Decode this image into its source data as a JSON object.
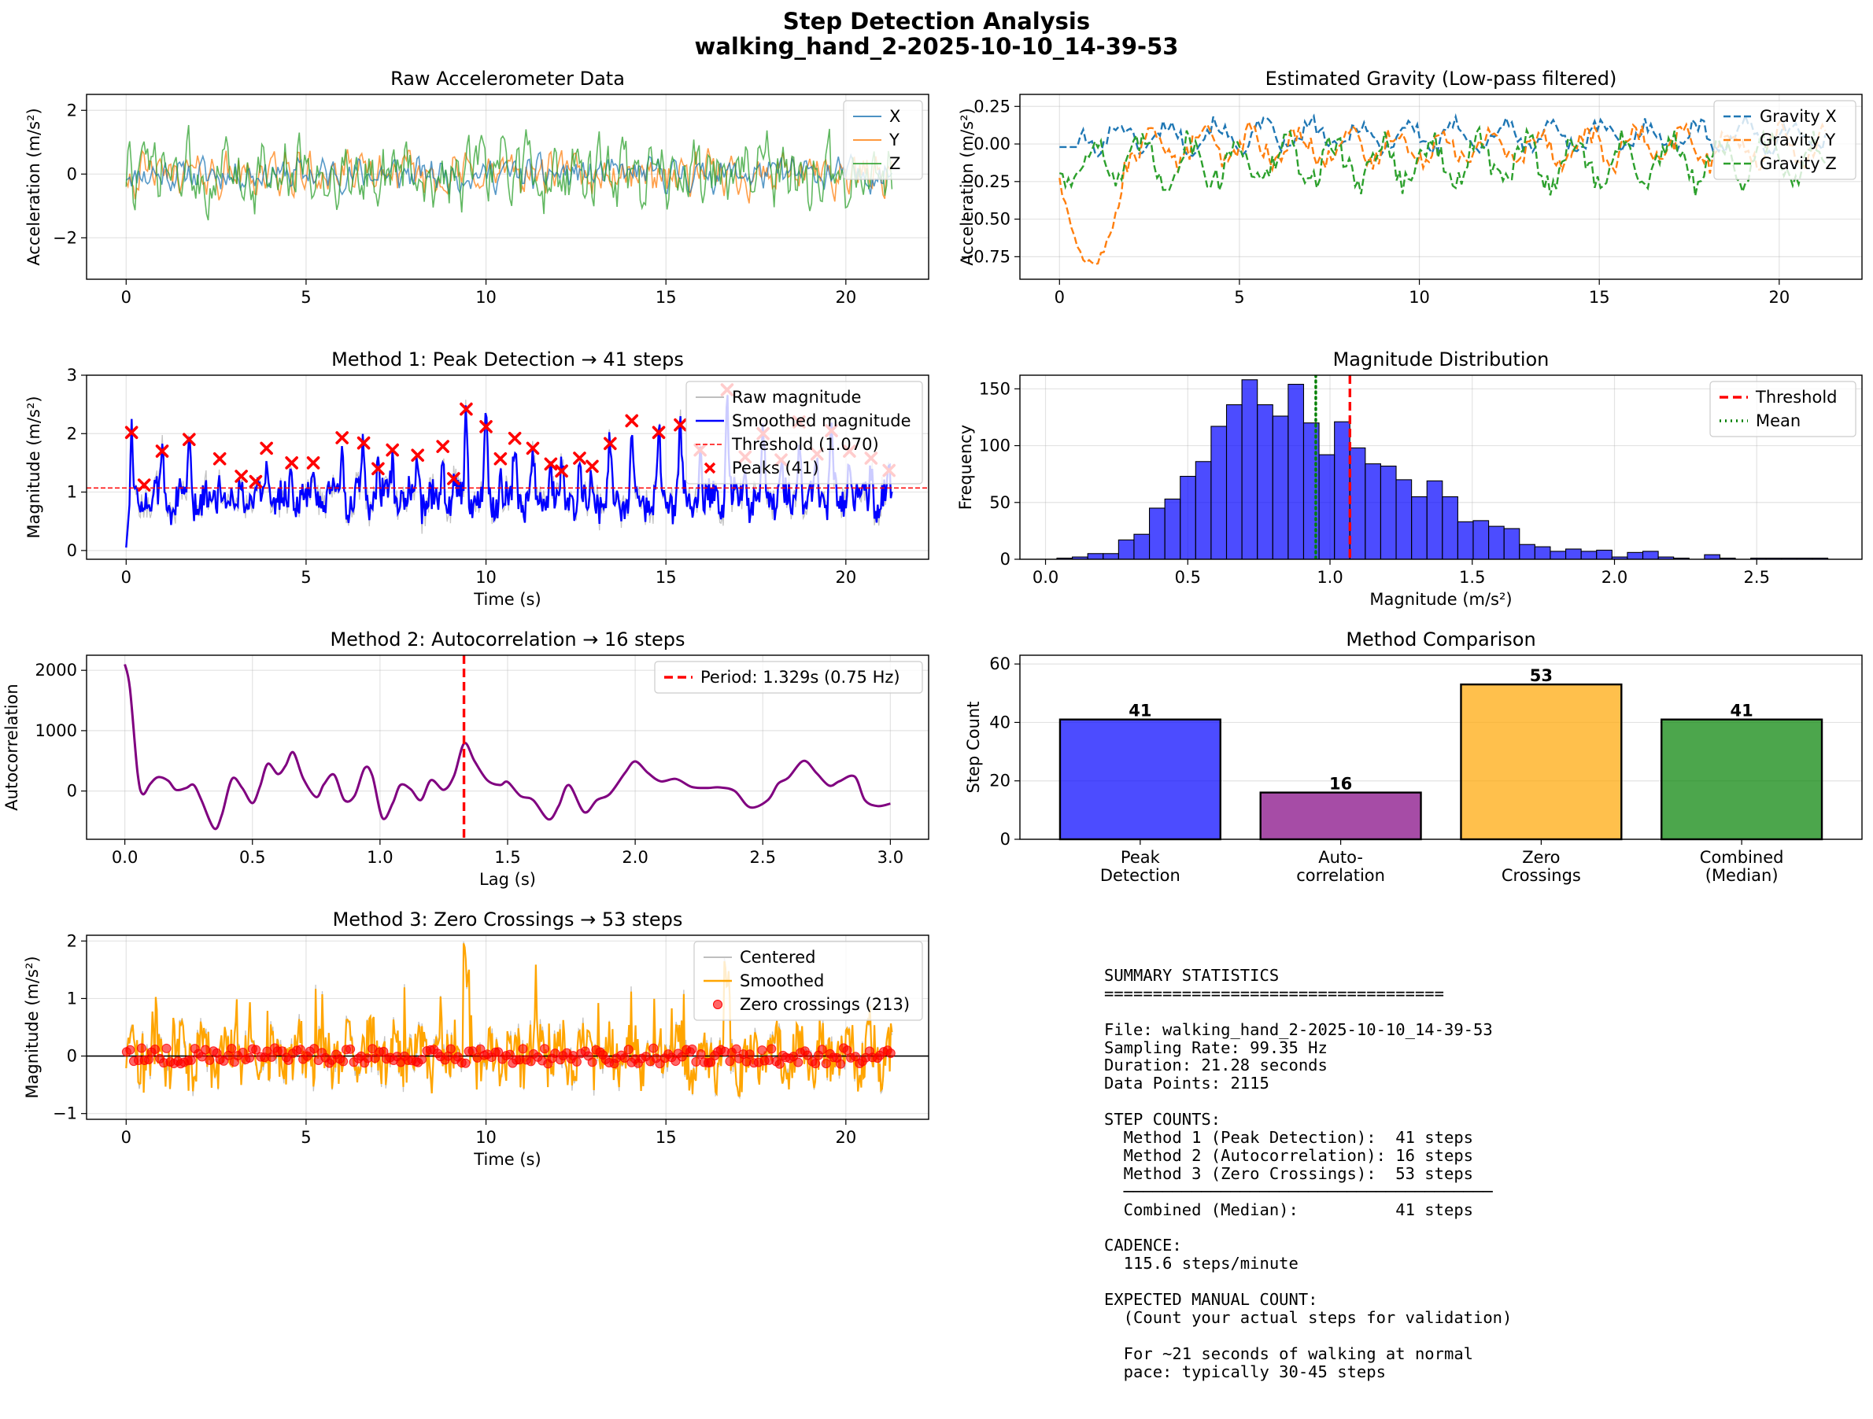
{
  "figure": {
    "title_line1": "Step Detection Analysis",
    "title_line2": "walking_hand_2-2025-10-10_14-39-53"
  },
  "colors": {
    "x": "#1f77b4",
    "y": "#ff7f0e",
    "z": "#2ca02c",
    "smoothed": "#0000ff",
    "threshold": "#ff0000",
    "peaks": "#ff0000",
    "autocorr": "#800080",
    "period": "#ff0000",
    "zero_smoothed": "#ffa500",
    "zero_points": "#ff0000",
    "hist": "#0000ff",
    "mean": "#008000",
    "raw": "#aaaaaa"
  },
  "chart_data": [
    {
      "id": "raw_accel",
      "type": "line",
      "title": "Raw Accelerometer Data",
      "xlabel": "",
      "ylabel": "Acceleration (m/s²)",
      "xlim": [
        -1.1,
        22.3
      ],
      "ylim": [
        -3.3,
        2.5
      ],
      "xticks": [
        0,
        5,
        10,
        15,
        20
      ],
      "yticks": [
        -2,
        0,
        2
      ],
      "grid": true,
      "legend": "top-right",
      "duration": 21.28,
      "series": [
        {
          "name": "X",
          "amplitude": 0.45
        },
        {
          "name": "Y",
          "amplitude": 0.6
        },
        {
          "name": "Z",
          "amplitude": 1.0
        }
      ]
    },
    {
      "id": "gravity",
      "type": "line",
      "title": "Estimated Gravity (Low-pass filtered)",
      "xlabel": "",
      "ylabel": "Acceleration (m/s²)",
      "xlim": [
        -1.1,
        22.3
      ],
      "ylim": [
        -0.9,
        0.33
      ],
      "xticks": [
        0,
        5,
        10,
        15,
        20
      ],
      "yticks": [
        0.25,
        0.0,
        -0.25,
        -0.5,
        -0.75
      ],
      "ytick_labels": [
        "0.25",
        "0.00",
        "−0.25",
        "−0.50",
        "−0.75"
      ],
      "grid": true,
      "legend": "top-right",
      "series": [
        {
          "name": "Gravity X",
          "mean": 0.05,
          "amplitude": 0.12
        },
        {
          "name": "Gravity Y",
          "mean": -0.02,
          "amplitude": 0.16
        },
        {
          "name": "Gravity Z",
          "mean": -0.12,
          "amplitude": 0.2
        }
      ]
    },
    {
      "id": "peak_detection",
      "type": "line",
      "title": "Method 1: Peak Detection → 41 steps",
      "xlabel": "Time (s)",
      "ylabel": "Magnitude (m/s²)",
      "xlim": [
        -1.1,
        22.3
      ],
      "ylim": [
        -0.15,
        3.0
      ],
      "xticks": [
        0,
        5,
        10,
        15,
        20
      ],
      "yticks": [
        0,
        1,
        2,
        3
      ],
      "grid": true,
      "legend": "top-right",
      "threshold": 1.07,
      "series": [
        {
          "name": "Raw magnitude"
        },
        {
          "name": "Smoothed magnitude"
        },
        {
          "name": "Threshold (1.070)"
        },
        {
          "name": "Peaks (41)"
        }
      ],
      "peaks": [
        {
          "x": 0.15,
          "y": 2.02
        },
        {
          "x": 0.5,
          "y": 1.12
        },
        {
          "x": 1.0,
          "y": 1.7
        },
        {
          "x": 1.75,
          "y": 1.9
        },
        {
          "x": 2.6,
          "y": 1.57
        },
        {
          "x": 3.2,
          "y": 1.27
        },
        {
          "x": 3.6,
          "y": 1.18
        },
        {
          "x": 3.9,
          "y": 1.75
        },
        {
          "x": 4.6,
          "y": 1.5
        },
        {
          "x": 5.2,
          "y": 1.5
        },
        {
          "x": 6.0,
          "y": 1.93
        },
        {
          "x": 6.6,
          "y": 1.84
        },
        {
          "x": 7.0,
          "y": 1.4
        },
        {
          "x": 7.4,
          "y": 1.72
        },
        {
          "x": 8.1,
          "y": 1.63
        },
        {
          "x": 8.8,
          "y": 1.78
        },
        {
          "x": 9.1,
          "y": 1.23
        },
        {
          "x": 9.45,
          "y": 2.42
        },
        {
          "x": 10.0,
          "y": 2.12
        },
        {
          "x": 10.4,
          "y": 1.57
        },
        {
          "x": 10.8,
          "y": 1.92
        },
        {
          "x": 11.3,
          "y": 1.75
        },
        {
          "x": 11.8,
          "y": 1.48
        },
        {
          "x": 12.1,
          "y": 1.36
        },
        {
          "x": 12.6,
          "y": 1.58
        },
        {
          "x": 12.95,
          "y": 1.44
        },
        {
          "x": 13.45,
          "y": 1.83
        },
        {
          "x": 14.05,
          "y": 2.22
        },
        {
          "x": 14.8,
          "y": 2.02
        },
        {
          "x": 15.4,
          "y": 2.15
        },
        {
          "x": 15.95,
          "y": 1.72
        },
        {
          "x": 16.7,
          "y": 2.75
        },
        {
          "x": 17.2,
          "y": 1.6
        },
        {
          "x": 17.7,
          "y": 2.0
        },
        {
          "x": 18.2,
          "y": 1.55
        },
        {
          "x": 18.7,
          "y": 2.2
        },
        {
          "x": 19.2,
          "y": 1.65
        },
        {
          "x": 19.6,
          "y": 2.05
        },
        {
          "x": 20.1,
          "y": 1.7
        },
        {
          "x": 20.7,
          "y": 1.58
        },
        {
          "x": 21.2,
          "y": 1.37
        }
      ]
    },
    {
      "id": "magnitude_distribution",
      "type": "bar",
      "title": "Magnitude Distribution",
      "xlabel": "Magnitude (m/s²)",
      "ylabel": "Frequency",
      "xlim": [
        -0.09,
        2.87
      ],
      "ylim": [
        0,
        162
      ],
      "xticks": [
        0.0,
        0.5,
        1.0,
        1.5,
        2.0,
        2.5
      ],
      "yticks": [
        0,
        50,
        100,
        150
      ],
      "grid": true,
      "legend": "top-right",
      "bin_start": 0.04,
      "bin_width": 0.0542,
      "values": [
        1,
        2,
        5,
        5,
        17,
        22,
        45,
        53,
        73,
        86,
        117,
        136,
        158,
        136,
        126,
        154,
        120,
        92,
        121,
        98,
        84,
        82,
        70,
        55,
        69,
        55,
        33,
        34,
        29,
        27,
        13,
        11,
        7,
        9,
        7,
        8,
        2,
        6,
        7,
        2,
        1,
        0,
        4,
        1,
        0,
        1,
        1,
        1,
        1,
        1
      ],
      "threshold": 1.07,
      "mean": 0.95,
      "series": [
        {
          "name": "Threshold"
        },
        {
          "name": "Mean"
        }
      ]
    },
    {
      "id": "autocorrelation",
      "type": "line",
      "title": "Method 2: Autocorrelation → 16 steps",
      "xlabel": "Lag (s)",
      "ylabel": "Autocorrelation",
      "xlim": [
        -0.15,
        3.15
      ],
      "ylim": [
        -800,
        2250
      ],
      "xticks": [
        0.0,
        0.5,
        1.0,
        1.5,
        2.0,
        2.5,
        3.0
      ],
      "yticks": [
        0,
        1000,
        2000
      ],
      "grid": true,
      "legend": "top-right",
      "period_lag": 1.329,
      "series": [
        {
          "name": "Period: 1.329s (0.75 Hz)"
        }
      ],
      "curve": [
        [
          0.0,
          2100
        ],
        [
          0.02,
          1700
        ],
        [
          0.05,
          300
        ],
        [
          0.07,
          -50
        ],
        [
          0.1,
          120
        ],
        [
          0.13,
          230
        ],
        [
          0.17,
          170
        ],
        [
          0.2,
          20
        ],
        [
          0.24,
          50
        ],
        [
          0.27,
          100
        ],
        [
          0.3,
          -150
        ],
        [
          0.35,
          -620
        ],
        [
          0.38,
          -400
        ],
        [
          0.42,
          200
        ],
        [
          0.46,
          50
        ],
        [
          0.5,
          -200
        ],
        [
          0.53,
          80
        ],
        [
          0.56,
          450
        ],
        [
          0.6,
          280
        ],
        [
          0.63,
          420
        ],
        [
          0.66,
          640
        ],
        [
          0.7,
          200
        ],
        [
          0.75,
          -100
        ],
        [
          0.78,
          110
        ],
        [
          0.82,
          270
        ],
        [
          0.86,
          -150
        ],
        [
          0.9,
          -80
        ],
        [
          0.94,
          380
        ],
        [
          0.97,
          250
        ],
        [
          1.01,
          -450
        ],
        [
          1.05,
          -200
        ],
        [
          1.08,
          100
        ],
        [
          1.12,
          30
        ],
        [
          1.16,
          -150
        ],
        [
          1.2,
          180
        ],
        [
          1.25,
          20
        ],
        [
          1.29,
          250
        ],
        [
          1.33,
          790
        ],
        [
          1.37,
          500
        ],
        [
          1.42,
          180
        ],
        [
          1.47,
          100
        ],
        [
          1.5,
          150
        ],
        [
          1.55,
          -80
        ],
        [
          1.6,
          -150
        ],
        [
          1.66,
          -470
        ],
        [
          1.7,
          -250
        ],
        [
          1.74,
          100
        ],
        [
          1.8,
          -350
        ],
        [
          1.85,
          -150
        ],
        [
          1.9,
          -50
        ],
        [
          1.96,
          300
        ],
        [
          2.0,
          490
        ],
        [
          2.05,
          300
        ],
        [
          2.1,
          160
        ],
        [
          2.16,
          200
        ],
        [
          2.22,
          70
        ],
        [
          2.28,
          50
        ],
        [
          2.33,
          60
        ],
        [
          2.39,
          0
        ],
        [
          2.45,
          -270
        ],
        [
          2.52,
          -150
        ],
        [
          2.56,
          120
        ],
        [
          2.6,
          220
        ],
        [
          2.66,
          500
        ],
        [
          2.71,
          300
        ],
        [
          2.76,
          90
        ],
        [
          2.8,
          160
        ],
        [
          2.86,
          240
        ],
        [
          2.9,
          -150
        ],
        [
          2.95,
          -250
        ],
        [
          3.0,
          -210
        ]
      ]
    },
    {
      "id": "method_comparison",
      "type": "bar",
      "title": "Method Comparison",
      "xlabel": "",
      "ylabel": "Step Count",
      "ylim": [
        0,
        63
      ],
      "yticks": [
        0,
        20,
        40,
        60
      ],
      "grid": true,
      "categories": [
        "Peak\nDetection",
        "Auto-\ncorrelation",
        "Zero\nCrossings",
        "Combined\n(Median)"
      ],
      "values": [
        41,
        16,
        53,
        41
      ],
      "bar_colors": [
        "#0000ff",
        "#800080",
        "#ffa500",
        "#008000"
      ]
    },
    {
      "id": "zero_crossings",
      "type": "line",
      "title": "Method 3: Zero Crossings → 53 steps",
      "xlabel": "Time (s)",
      "ylabel": "Magnitude (m/s²)",
      "xlim": [
        -1.1,
        22.3
      ],
      "ylim": [
        -1.1,
        2.1
      ],
      "xticks": [
        0,
        5,
        10,
        15,
        20
      ],
      "yticks": [
        -1,
        0,
        1,
        2
      ],
      "grid": true,
      "legend": "top-right",
      "series": [
        {
          "name": "Centered"
        },
        {
          "name": "Smoothed"
        },
        {
          "name": "Zero crossings (213)"
        }
      ],
      "zero_crossing_count": 213
    }
  ],
  "summary": {
    "lines": [
      "SUMMARY STATISTICS",
      "===================================",
      "",
      "File: walking_hand_2-2025-10-10_14-39-53",
      "Sampling Rate: 99.35 Hz",
      "Duration: 21.28 seconds",
      "Data Points: 2115",
      "",
      "STEP COUNTS:",
      "  Method 1 (Peak Detection):  41 steps",
      "  Method 2 (Autocorrelation): 16 steps",
      "  Method 3 (Zero Crossings):  53 steps",
      "  ──────────────────────────────────────",
      "  Combined (Median):          41 steps",
      "",
      "CADENCE:",
      "  115.6 steps/minute",
      "",
      "EXPECTED MANUAL COUNT:",
      "  (Count your actual steps for validation)",
      "",
      "  For ~21 seconds of walking at normal",
      "  pace: typically 30-45 steps"
    ]
  }
}
